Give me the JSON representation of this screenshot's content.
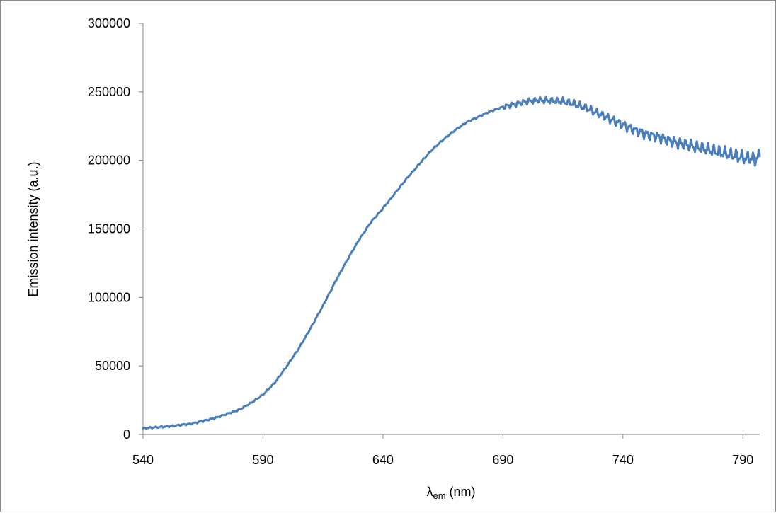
{
  "chart_data": {
    "type": "line",
    "title": "",
    "xlabel": "λem (nm)",
    "xlabel_parts": {
      "symbol": "λ",
      "subscript": "em",
      "unit": " (nm)"
    },
    "ylabel": "Emission intensity (a.u.)",
    "xlim": [
      540,
      797
    ],
    "ylim": [
      0,
      300000
    ],
    "x_ticks": [
      "540",
      "590",
      "640",
      "690",
      "740",
      "790"
    ],
    "y_ticks": [
      "0",
      "50000",
      "100000",
      "150000",
      "200000",
      "250000",
      "300000"
    ],
    "grid": false,
    "legend": "none",
    "series": [
      {
        "color": "#4a7ebb",
        "x": [
          540,
          545,
          550,
          555,
          560,
          565,
          570,
          575,
          580,
          585,
          590,
          595,
          600,
          605,
          610,
          615,
          620,
          625,
          630,
          635,
          640,
          645,
          650,
          655,
          660,
          665,
          670,
          675,
          680,
          685,
          690,
          695,
          700,
          705,
          710,
          715,
          720,
          725,
          730,
          735,
          740,
          745,
          750,
          755,
          760,
          765,
          770,
          775,
          780,
          785,
          790,
          795,
          797
        ],
        "y": [
          4500,
          5200,
          5800,
          6800,
          7800,
          9800,
          12000,
          15000,
          18000,
          23000,
          29000,
          38000,
          50000,
          63000,
          78000,
          94000,
          111000,
          127000,
          142000,
          155000,
          165000,
          176000,
          187000,
          197000,
          207000,
          215000,
          222000,
          228000,
          232000,
          236000,
          239000,
          241000,
          243000,
          244000,
          243500,
          243000,
          241000,
          238000,
          234000,
          230000,
          226000,
          222000,
          219000,
          217000,
          214000,
          212000,
          210000,
          208000,
          206000,
          204000,
          202000,
          201000,
          203000
        ]
      }
    ]
  }
}
